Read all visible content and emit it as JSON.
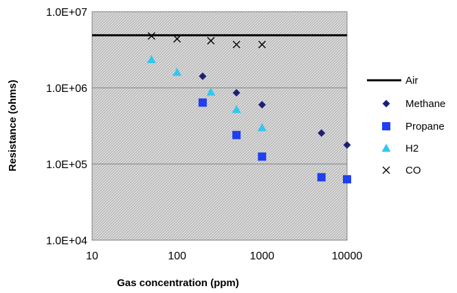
{
  "chart_data": {
    "type": "scatter",
    "xlabel": "Gas concentration (ppm)",
    "ylabel": "Resistance (ohms)",
    "xscale": "log",
    "yscale": "log",
    "xlim": [
      10,
      10000
    ],
    "ylim": [
      10000,
      10000000
    ],
    "x_ticks": [
      "10",
      "100",
      "1000",
      "10000"
    ],
    "y_ticks": [
      "1.0E+04",
      "1.0E+05",
      "1.0E+06",
      "1.0E+07"
    ],
    "grid": "horizontal major gridlines, hatched plot area",
    "legend_position": "right",
    "series": [
      {
        "name": "Air",
        "marker": "line",
        "color": "#000000",
        "points": [
          [
            10,
            4900000
          ],
          [
            10000,
            4900000
          ]
        ]
      },
      {
        "name": "Methane",
        "marker": "diamond",
        "color": "#1f1f7a",
        "points": [
          [
            200,
            1420000
          ],
          [
            500,
            860000
          ],
          [
            1000,
            600000
          ],
          [
            5000,
            255000
          ],
          [
            10000,
            178000
          ]
        ]
      },
      {
        "name": "Propane",
        "marker": "square",
        "color": "#1f3ff0",
        "points": [
          [
            200,
            640000
          ],
          [
            500,
            240000
          ],
          [
            1000,
            125000
          ],
          [
            5000,
            67000
          ],
          [
            10000,
            63000
          ]
        ]
      },
      {
        "name": "H2",
        "marker": "triangle",
        "color": "#33c6f0",
        "points": [
          [
            50,
            2350000
          ],
          [
            100,
            1600000
          ],
          [
            250,
            880000
          ],
          [
            500,
            520000
          ],
          [
            1000,
            300000
          ]
        ]
      },
      {
        "name": "CO",
        "marker": "x",
        "color": "#000000",
        "points": [
          [
            50,
            4800000
          ],
          [
            100,
            4400000
          ],
          [
            250,
            4150000
          ],
          [
            500,
            3700000
          ],
          [
            1000,
            3700000
          ]
        ]
      }
    ]
  }
}
